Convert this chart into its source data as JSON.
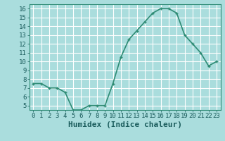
{
  "x": [
    0,
    1,
    2,
    3,
    4,
    5,
    6,
    7,
    8,
    9,
    10,
    11,
    12,
    13,
    14,
    15,
    16,
    17,
    18,
    19,
    20,
    21,
    22,
    23
  ],
  "y": [
    7.5,
    7.5,
    7.0,
    7.0,
    6.5,
    4.5,
    4.5,
    5.0,
    5.0,
    5.0,
    7.5,
    10.5,
    12.5,
    13.5,
    14.5,
    15.5,
    16.0,
    16.0,
    15.5,
    13.0,
    12.0,
    11.0,
    9.5,
    10.0
  ],
  "line_color": "#2e8b74",
  "marker": "+",
  "bg_color": "#aadddd",
  "grid_color": "#ffffff",
  "xlabel": "Humidex (Indice chaleur)",
  "xlabel_fontsize": 8,
  "xlim": [
    -0.5,
    23.5
  ],
  "ylim": [
    4.5,
    16.5
  ],
  "yticks": [
    5,
    6,
    7,
    8,
    9,
    10,
    11,
    12,
    13,
    14,
    15,
    16
  ],
  "xticks": [
    0,
    1,
    2,
    3,
    4,
    5,
    6,
    7,
    8,
    9,
    10,
    11,
    12,
    13,
    14,
    15,
    16,
    17,
    18,
    19,
    20,
    21,
    22,
    23
  ],
  "tick_fontsize": 6.5,
  "line_width": 1.2,
  "marker_size": 3.5
}
